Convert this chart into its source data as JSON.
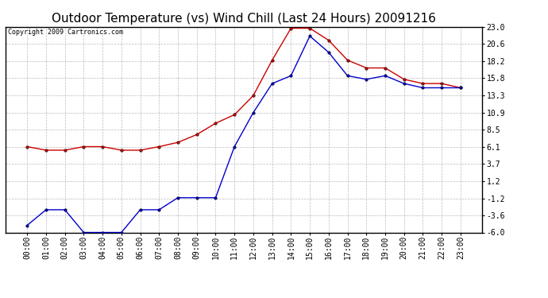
{
  "title": "Outdoor Temperature (vs) Wind Chill (Last 24 Hours) 20091216",
  "copyright": "Copyright 2009 Cartronics.com",
  "x_labels": [
    "00:00",
    "01:00",
    "02:00",
    "03:00",
    "04:00",
    "05:00",
    "06:00",
    "07:00",
    "08:00",
    "09:00",
    "10:00",
    "11:00",
    "12:00",
    "13:00",
    "14:00",
    "15:00",
    "16:00",
    "17:00",
    "18:00",
    "19:00",
    "20:00",
    "21:00",
    "22:00",
    "23:00"
  ],
  "temp_red": [
    6.1,
    5.6,
    5.6,
    6.1,
    6.1,
    5.6,
    5.6,
    6.1,
    6.7,
    7.8,
    9.4,
    10.6,
    13.3,
    18.3,
    22.8,
    22.8,
    21.1,
    18.3,
    17.2,
    17.2,
    15.6,
    15.0,
    15.0,
    14.4
  ],
  "temp_blue": [
    -5.0,
    -2.8,
    -2.8,
    -6.0,
    -6.0,
    -6.0,
    -2.8,
    -2.8,
    -1.1,
    -1.1,
    -1.1,
    6.1,
    10.9,
    15.0,
    16.1,
    21.7,
    19.4,
    16.1,
    15.6,
    16.1,
    15.0,
    14.4,
    14.4,
    14.4
  ],
  "ylim": [
    -6.0,
    23.0
  ],
  "yticks": [
    -6.0,
    -3.6,
    -1.2,
    1.2,
    3.7,
    6.1,
    8.5,
    10.9,
    13.3,
    15.8,
    18.2,
    20.6,
    23.0
  ],
  "ytick_labels": [
    "-6.0",
    "-3.6",
    "-1.2",
    "1.2",
    "3.7",
    "6.1",
    "8.5",
    "10.9",
    "13.3",
    "15.8",
    "18.2",
    "20.6",
    "23.0"
  ],
  "red_color": "#cc0000",
  "blue_color": "#0000cc",
  "bg_color": "#ffffff",
  "grid_color": "#bbbbbb",
  "title_fontsize": 11,
  "copyright_fontsize": 6,
  "tick_fontsize": 7
}
